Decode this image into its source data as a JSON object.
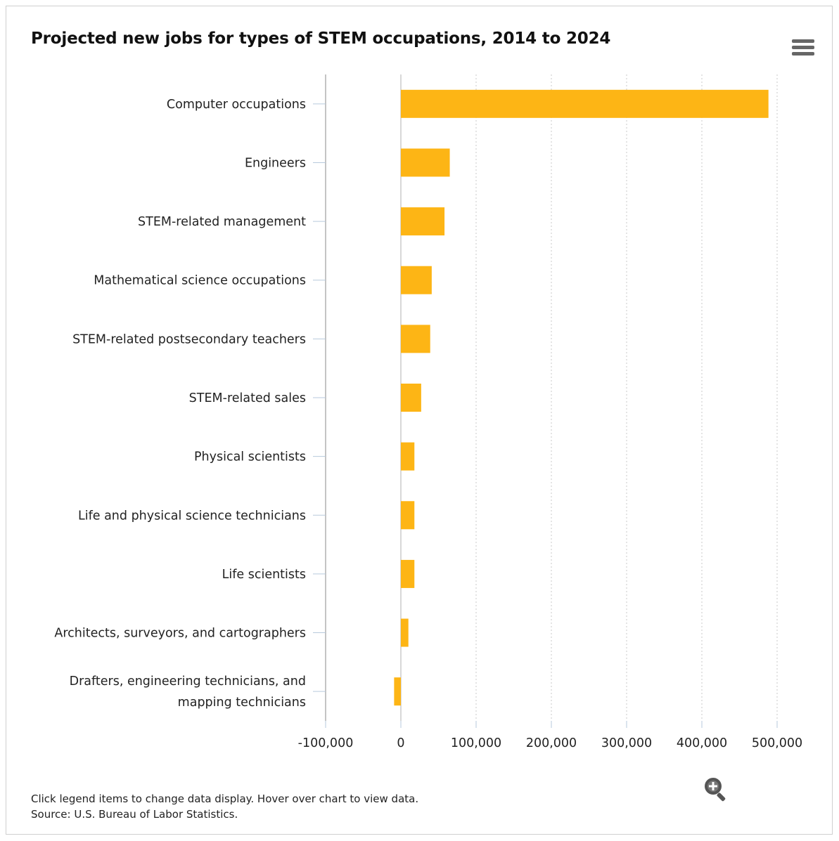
{
  "title": "Projected new jobs for types of STEM occupations, 2014 to 2024",
  "menu_icon": "hamburger-menu-icon",
  "zoom_icon": "zoom-in-icon",
  "footer": {
    "instructions": "Click legend items to change data display. Hover over chart to view data.",
    "source": "Source: U.S. Bureau of Labor Statistics."
  },
  "chart_data": {
    "type": "bar",
    "orientation": "horizontal",
    "title": "Projected new jobs for types of STEM occupations, 2014 to 2024",
    "categories": [
      "Computer occupations",
      "Engineers",
      "STEM-related management",
      "Mathematical science occupations",
      "STEM-related postsecondary teachers",
      "STEM-related sales",
      "Physical scientists",
      "Life and physical science technicians",
      "Life scientists",
      "Architects, surveyors, and cartographers",
      "Drafters, engineering technicians, and mapping technicians"
    ],
    "values": [
      488500,
      65000,
      58000,
      41000,
      39000,
      27000,
      18000,
      18000,
      18000,
      10000,
      -9000
    ],
    "xlim": [
      -100000,
      500000
    ],
    "ticks": [
      -100000,
      0,
      100000,
      200000,
      300000,
      400000,
      500000
    ],
    "tick_labels": [
      "-100,000",
      "0",
      "100,000",
      "200,000",
      "300,000",
      "400,000",
      "500,000"
    ],
    "bar_color": "#FDB515",
    "grid": "vertical dotted",
    "legend": "none"
  }
}
